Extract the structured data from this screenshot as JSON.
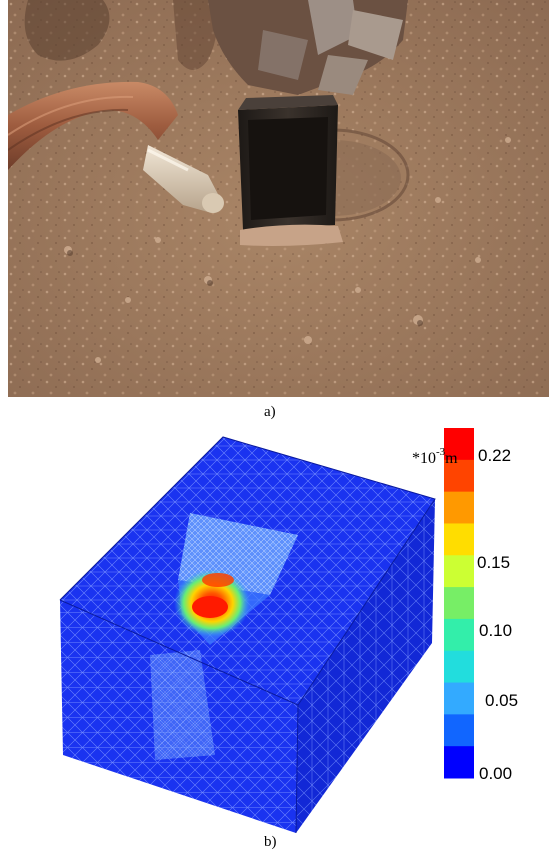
{
  "captions": {
    "a": "a)",
    "b": "b)"
  },
  "colorbar": {
    "unit_prefix": "*10",
    "unit_exponent": "-3",
    "unit_suffix": "m",
    "tick_labels": [
      "0.22",
      "0.15",
      "0.10",
      "0.05",
      "0.00"
    ],
    "colors": [
      "#ff0000",
      "#ff4400",
      "#ff9900",
      "#ffdd00",
      "#ccff33",
      "#77ee66",
      "#33eeaa",
      "#22dddd",
      "#33aaff",
      "#1166ff",
      "#0000ff"
    ]
  },
  "photo": {
    "colors": {
      "soil": "#a27c5f",
      "soil_dark": "#7a5a44",
      "metal": "#2c2622",
      "tether": "#b4714f"
    }
  },
  "model": {
    "colors": {
      "block": "#1a33f0",
      "block_side": "#1228d6",
      "mesh_line": "#6f87ff",
      "cavity": "#6fa8ff"
    }
  }
}
